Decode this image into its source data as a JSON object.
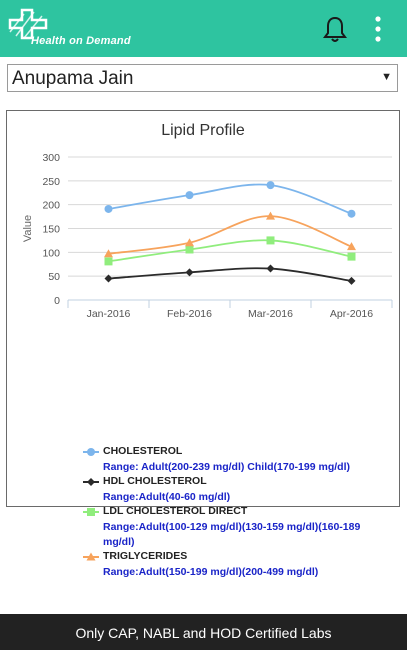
{
  "app": {
    "logo_text": "Health on Demand",
    "brand_color": "#2ec4a0",
    "icons": [
      "plus-logo-icon",
      "bell-icon",
      "more-vert-icon"
    ]
  },
  "patient_selector": {
    "selected": "Anupama Jain"
  },
  "chart_data": {
    "type": "line",
    "title": "Lipid Profile",
    "ylabel": "Value",
    "xlabel": "",
    "categories": [
      "Jan-2016",
      "Feb-2016",
      "Mar-2016",
      "Apr-2016"
    ],
    "yticks": [
      "0",
      "50",
      "100",
      "150",
      "200",
      "250",
      "300"
    ],
    "ylim": [
      0,
      300
    ],
    "grid": "horizontal",
    "series": [
      {
        "name": "CHOLESTEROL",
        "values": [
          191,
          220,
          241,
          181
        ],
        "color": "#7cb5ec",
        "marker": "circle",
        "range": "Range: Adult(200-239 mg/dl) Child(170-199 mg/dl)"
      },
      {
        "name": "HDL CHOLESTEROL",
        "values": [
          45,
          58,
          66,
          40
        ],
        "color": "#2b2b2b",
        "marker": "diamond",
        "range": "Range:Adult(40-60 mg/dl)"
      },
      {
        "name": "LDL CHOLESTEROL DIRECT",
        "values": [
          81,
          106,
          125,
          91
        ],
        "color": "#90ed7d",
        "marker": "square",
        "range": "Range:Adult(100-129 mg/dl)(130-159 mg/dl)(160-189 mg/dl)"
      },
      {
        "name": "TRIGLYCERIDES",
        "values": [
          97,
          120,
          176,
          112
        ],
        "color": "#f7a35c",
        "marker": "triangle",
        "range": "Range:Adult(150-199 mg/dl)(200-499 mg/dl)"
      }
    ]
  },
  "footer": {
    "text": "Only CAP, NABL and HOD Certified Labs"
  }
}
